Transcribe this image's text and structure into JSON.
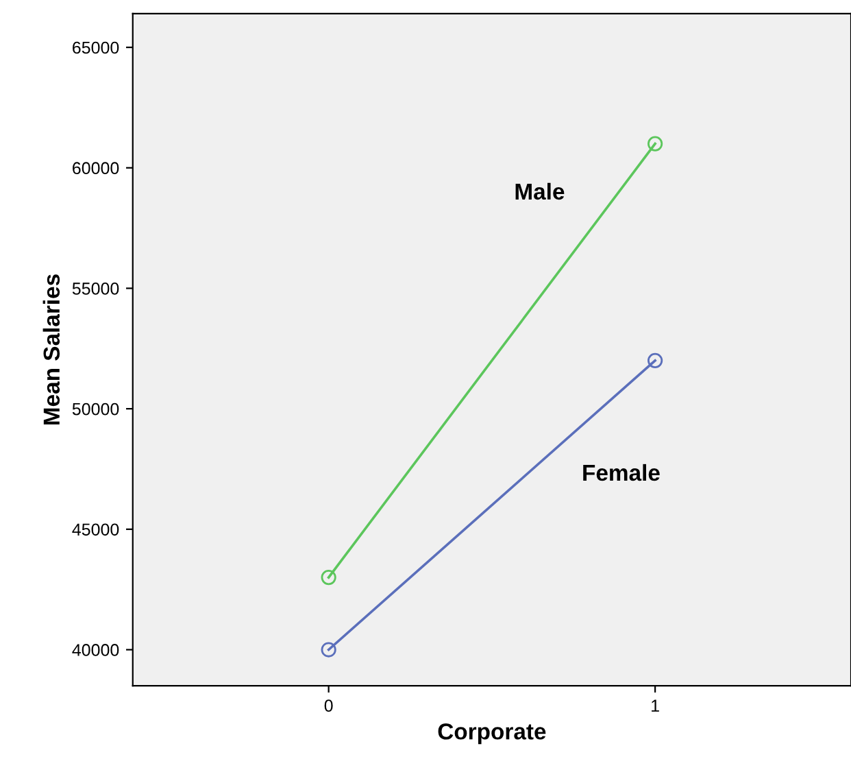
{
  "chart_data": {
    "type": "line",
    "xlabel": "Corporate",
    "ylabel": "Mean Salaries",
    "x": [
      0,
      1
    ],
    "series": [
      {
        "name": "Female",
        "color": "#5b6fbb",
        "values": [
          40000,
          52000
        ]
      },
      {
        "name": "Male",
        "color": "#5cc65c",
        "values": [
          43000,
          61000
        ]
      }
    ],
    "xlim": [
      -0.6,
      1.6
    ],
    "xticks": [
      0,
      1
    ],
    "ylim": [
      38500,
      66400
    ],
    "yticks": [
      40000,
      45000,
      50000,
      55000,
      60000,
      65000
    ],
    "marker": "circle",
    "line_style": "solid",
    "grid": false,
    "legend": false
  }
}
